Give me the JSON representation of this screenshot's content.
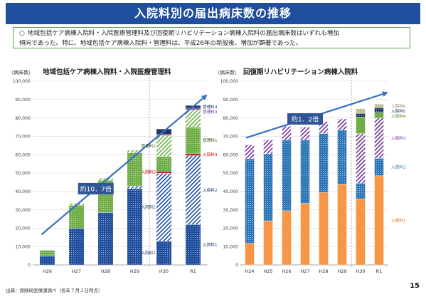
{
  "title": "入院料別の届出病床数の推移",
  "summary": {
    "mark": "○",
    "line1": "地域包括ケア病棟入院料・入院医療管理料及び回復期リハビリテーション病棟入院料の届出病床数はいずれも増加",
    "line2": "傾向であった。特に、地域包括ケア病棟入院料・管理料は、平成26年の新設後、増加が顕著であった。"
  },
  "source": "出典：保険局医療課調べ（各年７月１日時点）",
  "page_number": "15",
  "chart_data": [
    {
      "type": "bar",
      "stacked": true,
      "title": "地域包括ケア病棟入院料・入院医療管理料",
      "ylabel": "（病床数）",
      "ylim": [
        0,
        100000
      ],
      "yticks": [
        "0",
        "10,000",
        "20,000",
        "30,000",
        "40,000",
        "50,000",
        "60,000",
        "70,000",
        "80,000",
        "90,000",
        "100,000"
      ],
      "categories": [
        "H26",
        "H27",
        "H28",
        "H29",
        "H30",
        "R1"
      ],
      "growth_label": "約10．7倍",
      "series": [
        {
          "name": "入院料1",
          "color": "#1f4e9c",
          "pattern": "dots",
          "values": [
            5000,
            20000,
            28500,
            41500,
            13000,
            22000
          ]
        },
        {
          "name": "入院料2",
          "color": "#1f4e9c",
          "pattern": "hatch",
          "values": [
            null,
            null,
            null,
            1500,
            37000,
            37500
          ]
        },
        {
          "name": "入院料3",
          "color": "#c00000",
          "pattern": "solid",
          "values": [
            null,
            null,
            null,
            null,
            1000,
            1000
          ]
        },
        {
          "name": "管理料1",
          "color": "#70ad47",
          "pattern": "dots",
          "values": [
            3000,
            12500,
            17500,
            18000,
            8000,
            14500
          ]
        },
        {
          "name": "管理料2",
          "color": "#70ad47",
          "pattern": "hatch",
          "values": [
            null,
            1000,
            1200,
            1500,
            11500,
            9500
          ]
        },
        {
          "name": "管理料3",
          "color": "#7030a0",
          "pattern": "solid",
          "values": [
            null,
            null,
            null,
            null,
            700,
            800
          ]
        },
        {
          "name": "管理料4",
          "color": "#203864",
          "pattern": "solid",
          "values": [
            null,
            null,
            null,
            null,
            2800,
            1500
          ]
        }
      ],
      "series_labels": [
        {
          "text": "管理料4",
          "color": "#203864"
        },
        {
          "text": "管理料3",
          "color": "#7030a0"
        },
        {
          "text": "管理料1",
          "color": "#375623"
        },
        {
          "text": "入院料3",
          "color": "#c00000"
        },
        {
          "text": "入院料2",
          "color": "#1f3864"
        },
        {
          "text": "入院料1",
          "color": "#1f3864"
        }
      ],
      "inline_labels": [
        {
          "text": "管理料2",
          "color": "#375623"
        },
        {
          "text": "入院料3",
          "color": "#c00000"
        },
        {
          "text": "入院料2",
          "color": "#1f3864"
        },
        {
          "text": "入院料1",
          "color": "#1f3864"
        }
      ]
    },
    {
      "type": "bar",
      "stacked": true,
      "title": "回復期リハビリテーション病棟入院料",
      "ylabel": "（病床数）",
      "ylim": [
        0,
        100000
      ],
      "yticks": [
        "0",
        "10,000",
        "20,000",
        "30,000",
        "40,000",
        "50,000",
        "60,000",
        "70,000",
        "80,000",
        "90,000",
        "100,000"
      ],
      "categories": [
        "H24",
        "H25",
        "H26",
        "H27",
        "H28",
        "H29",
        "H30",
        "R1"
      ],
      "growth_label": "約1．2倍",
      "series": [
        {
          "name": "入院料1",
          "color": "#f79646",
          "pattern": "solid",
          "values": [
            11800,
            24000,
            29500,
            33500,
            39500,
            44000,
            36000,
            48500
          ]
        },
        {
          "name": "入院料2",
          "color": "#2e75b6",
          "pattern": "dots",
          "values": [
            46000,
            36500,
            38500,
            34500,
            32000,
            29500,
            8500,
            9500
          ]
        },
        {
          "name": "入院料3",
          "color": "#7030a0",
          "pattern": "hatch",
          "values": [
            7500,
            7500,
            7500,
            7000,
            6500,
            6000,
            27000,
            22000
          ]
        },
        {
          "name": "入院料4",
          "color": "#70ad47",
          "pattern": "solid",
          "values": [
            null,
            null,
            null,
            null,
            null,
            null,
            9000,
            3000
          ]
        },
        {
          "name": "入院料5",
          "color": "#203864",
          "pattern": "dots",
          "values": [
            null,
            null,
            null,
            null,
            null,
            null,
            2000,
            2500
          ]
        },
        {
          "name": "入院料6",
          "color": "#c4bd97",
          "pattern": "solid",
          "values": [
            null,
            null,
            null,
            null,
            null,
            null,
            2500,
            2000
          ]
        }
      ],
      "series_labels": [
        {
          "text": "入院料6",
          "color": "#948a54"
        },
        {
          "text": "入院料5",
          "color": "#203864"
        },
        {
          "text": "入院料4",
          "color": "#548235"
        },
        {
          "text": "入院料3",
          "color": "#7030a0"
        },
        {
          "text": "入院料2",
          "color": "#2e75b6"
        },
        {
          "text": "入院料1",
          "color": "#e46c0a"
        }
      ]
    }
  ]
}
